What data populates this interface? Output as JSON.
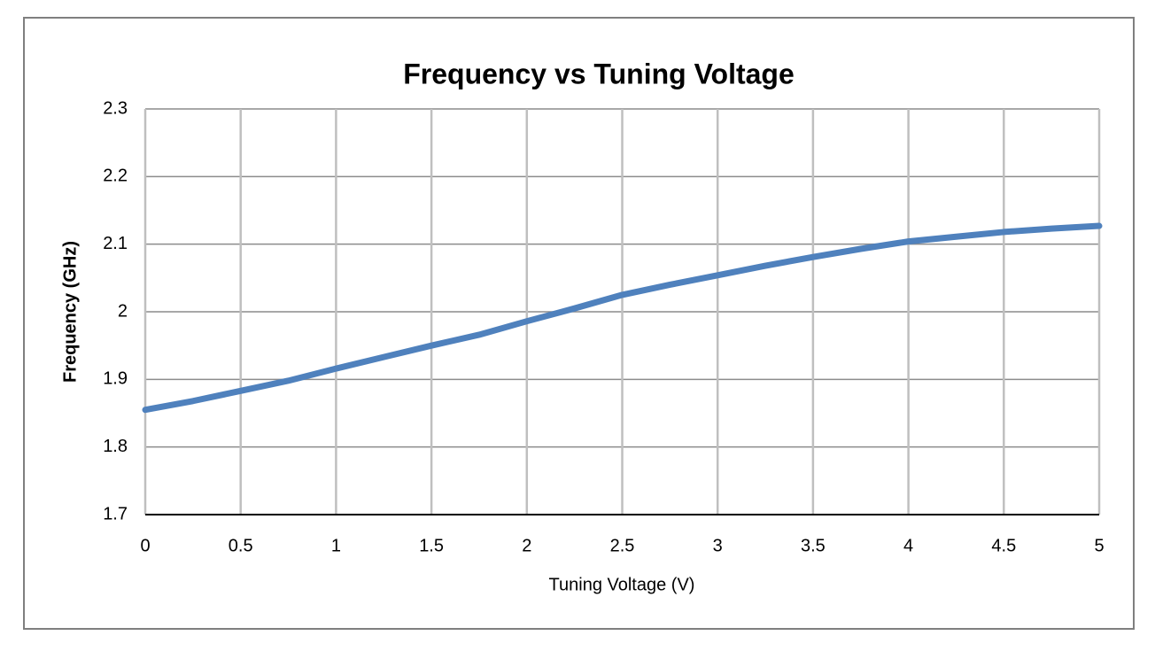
{
  "chart_data": {
    "type": "line",
    "title": "Frequency vs Tuning Voltage",
    "x_label": "Tuning Voltage (V)",
    "y_label": "Frequency (GHz)",
    "x": [
      0,
      0.25,
      0.5,
      0.75,
      1,
      1.25,
      1.5,
      1.75,
      2,
      2.25,
      2.5,
      2.75,
      3,
      3.25,
      3.5,
      3.75,
      4,
      4.25,
      4.5,
      4.75,
      5
    ],
    "values": [
      1.855,
      1.868,
      1.883,
      1.898,
      1.916,
      1.933,
      1.95,
      1.966,
      1.986,
      2.005,
      2.025,
      2.04,
      2.054,
      2.068,
      2.081,
      2.093,
      2.104,
      2.111,
      2.118,
      2.123,
      2.127
    ],
    "color": "#4f81bd",
    "xlim": [
      0,
      5
    ],
    "xticks": [
      0,
      0.5,
      1,
      1.5,
      2,
      2.5,
      3,
      3.5,
      4,
      4.5,
      5
    ],
    "ylim": [
      1.7,
      2.3
    ],
    "yticks": [
      1.7,
      1.8,
      1.9,
      2,
      2.1,
      2.2,
      2.3
    ],
    "grid": true
  }
}
